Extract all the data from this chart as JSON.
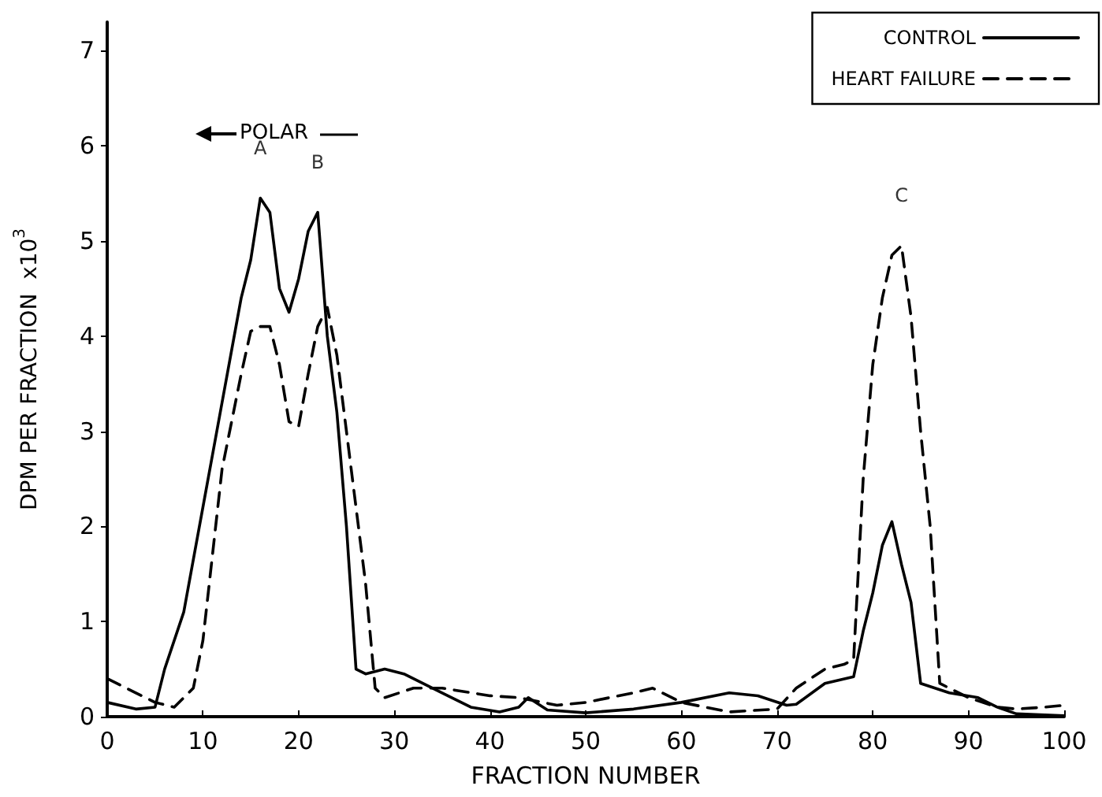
{
  "chart_data": {
    "type": "line",
    "xlabel": "FRACTION NUMBER",
    "ylabel": "DPM PER FRACTION  x10$^{3}$",
    "xlim": [
      0,
      100
    ],
    "ylim": [
      0,
      7.3
    ],
    "xticks": [
      0,
      10,
      20,
      30,
      40,
      50,
      60,
      70,
      80,
      90,
      100
    ],
    "yticks": [
      0,
      1,
      2,
      3,
      4,
      5,
      6,
      7
    ],
    "grid": false,
    "legend": "top right",
    "marker": "none",
    "annotations": [
      {
        "text": "A",
        "x": 16,
        "y": 5.45
      },
      {
        "text": "B",
        "x": 22,
        "y": 5.3
      },
      {
        "text": "C",
        "x": 83,
        "y": 4.95
      },
      "POLAR"
    ],
    "series": [
      {
        "name": "CONTROL",
        "color": "#000000",
        "line_style": "solid",
        "x": [
          0,
          3,
          5,
          6,
          8,
          10,
          12,
          14,
          15,
          16,
          17,
          18,
          19,
          20,
          21,
          22,
          23,
          24,
          25,
          26,
          27,
          29,
          31,
          35,
          38,
          41,
          43,
          44,
          46,
          50,
          55,
          60,
          65,
          68,
          71,
          72,
          75,
          78,
          79,
          80,
          81,
          82,
          83,
          84,
          85,
          88,
          91,
          93,
          95,
          100
        ],
        "values": [
          0.15,
          0.08,
          0.1,
          0.5,
          1.1,
          2.2,
          3.3,
          4.4,
          4.8,
          5.45,
          5.3,
          4.5,
          4.25,
          4.6,
          5.1,
          5.3,
          4.0,
          3.2,
          2.0,
          0.5,
          0.45,
          0.5,
          0.45,
          0.25,
          0.1,
          0.05,
          0.1,
          0.2,
          0.07,
          0.04,
          0.08,
          0.15,
          0.25,
          0.22,
          0.12,
          0.13,
          0.35,
          0.42,
          0.9,
          1.3,
          1.8,
          2.05,
          1.6,
          1.2,
          0.35,
          0.25,
          0.2,
          0.1,
          0.03,
          0.01
        ]
      },
      {
        "name": "HEART FAILURE",
        "color": "#000000",
        "line_style": "dashed",
        "x": [
          0,
          3,
          5,
          7,
          9,
          10,
          12,
          14,
          15,
          16,
          17,
          18,
          19,
          20,
          21,
          22,
          23,
          24,
          26,
          27,
          28,
          29,
          32,
          35,
          40,
          43,
          44,
          47,
          50,
          55,
          57,
          60,
          65,
          70,
          72,
          75,
          77,
          78,
          79,
          80,
          81,
          82,
          83,
          84,
          85,
          86,
          87,
          90,
          93,
          95,
          98,
          100
        ],
        "values": [
          0.4,
          0.25,
          0.15,
          0.1,
          0.3,
          0.8,
          2.6,
          3.6,
          4.05,
          4.1,
          4.1,
          3.7,
          3.1,
          3.05,
          3.6,
          4.1,
          4.3,
          3.8,
          2.2,
          1.4,
          0.3,
          0.2,
          0.3,
          0.3,
          0.22,
          0.2,
          0.18,
          0.12,
          0.15,
          0.25,
          0.3,
          0.15,
          0.05,
          0.08,
          0.3,
          0.5,
          0.55,
          0.6,
          2.5,
          3.7,
          4.4,
          4.85,
          4.95,
          4.2,
          3.0,
          2.0,
          0.35,
          0.2,
          0.1,
          0.08,
          0.1,
          0.12
        ]
      }
    ]
  }
}
